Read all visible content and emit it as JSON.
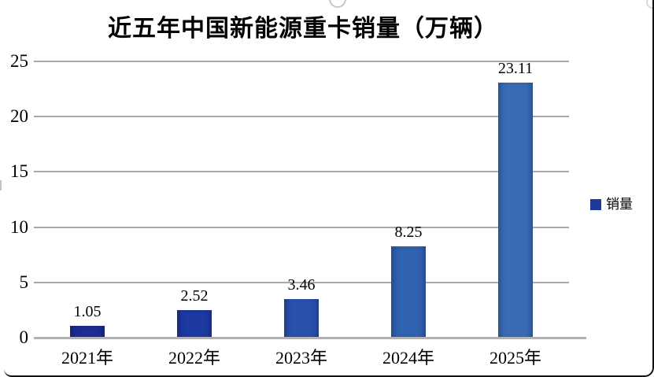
{
  "chart_data": {
    "type": "bar",
    "title": "近五年中国新能源重卡销量（万辆）",
    "categories": [
      "2021年",
      "2022年",
      "2023年",
      "2024年",
      "2025年"
    ],
    "values": [
      1.05,
      2.52,
      3.46,
      8.25,
      23.11
    ],
    "data_labels": [
      "1.05",
      "2.52",
      "3.46",
      "8.25",
      "23.11"
    ],
    "series_name": "销量",
    "yticks": [
      0,
      5,
      10,
      15,
      20,
      25
    ],
    "ylim": [
      0,
      25
    ],
    "grid": true,
    "legend_position": "right",
    "bar_colors": [
      "#1e2c95",
      "#1d3aa1",
      "#2a52ad",
      "#3062b2",
      "#3a6cb6"
    ],
    "legend_swatch_color": "#1c3a9c",
    "gridline_color": "#a8a8a8",
    "axis_line_color": "#b2b2b2",
    "title_color": "#000000",
    "background_color": "#ffffff"
  }
}
